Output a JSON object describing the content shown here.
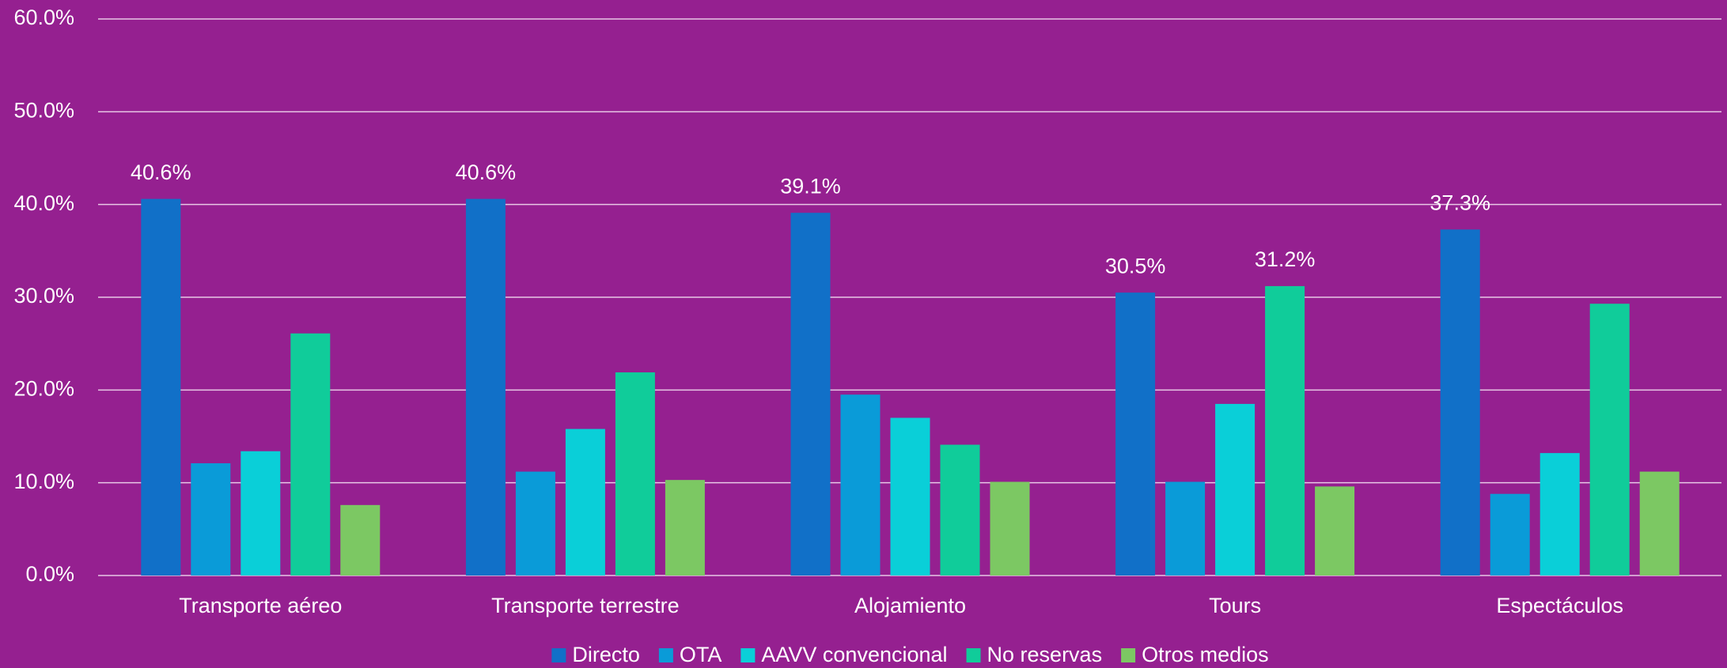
{
  "chart_data": {
    "type": "bar",
    "categories": [
      "Transporte aéreo",
      "Transporte terrestre",
      "Alojamiento",
      "Tours",
      "Espectáculos"
    ],
    "series": [
      {
        "name": "Directo",
        "color": "#1170c8",
        "values": [
          40.6,
          40.6,
          39.1,
          30.5,
          37.3
        ],
        "value_labels": [
          "40.6%",
          "40.6%",
          "39.1%",
          "30.5%",
          "37.3%"
        ]
      },
      {
        "name": "OTA",
        "color": "#0a9bd8",
        "values": [
          12.1,
          11.2,
          19.5,
          10.1,
          8.8
        ]
      },
      {
        "name": "AAVV convencional",
        "color": "#0acfd8",
        "values": [
          13.4,
          15.8,
          17.0,
          18.5,
          13.2
        ]
      },
      {
        "name": "No reservas",
        "color": "#10cc9a",
        "values": [
          26.1,
          21.9,
          14.1,
          31.2,
          29.3
        ],
        "value_labels": [
          null,
          null,
          null,
          "31.2%",
          null
        ]
      },
      {
        "name": "Otros medios",
        "color": "#7cc863",
        "values": [
          7.6,
          10.3,
          10.1,
          9.6,
          11.2
        ]
      }
    ],
    "ylim": [
      0,
      60
    ],
    "yticks": [
      {
        "value": 0,
        "label": "0.0%"
      },
      {
        "value": 10,
        "label": "10.0%"
      },
      {
        "value": 20,
        "label": "20.0%"
      },
      {
        "value": 30,
        "label": "30.0%"
      },
      {
        "value": 40,
        "label": "40.0%"
      },
      {
        "value": 50,
        "label": "50.0%"
      },
      {
        "value": 60,
        "label": "60.0%"
      }
    ],
    "grid": true,
    "legend": "bottom"
  }
}
